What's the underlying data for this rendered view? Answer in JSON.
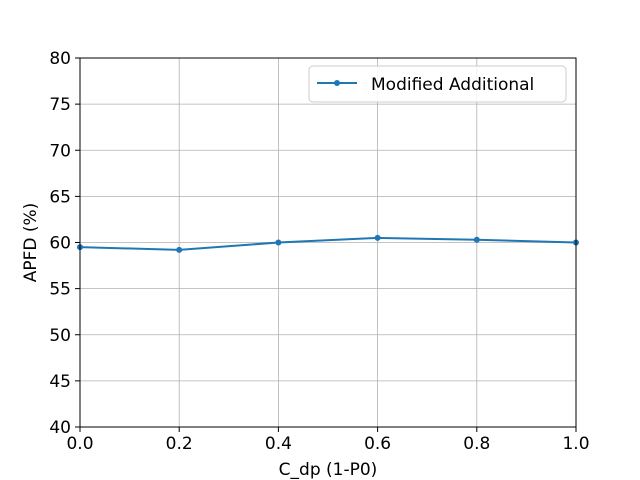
{
  "chart_data": {
    "type": "line",
    "title": "",
    "xlabel": "C_dp (1-P0)",
    "ylabel": "APFD (%)",
    "xlim": [
      0.0,
      1.0
    ],
    "ylim": [
      40,
      80
    ],
    "xticks": [
      "0.0",
      "0.2",
      "0.4",
      "0.6",
      "0.8",
      "1.0"
    ],
    "yticks": [
      "40",
      "45",
      "50",
      "55",
      "60",
      "65",
      "70",
      "75",
      "80"
    ],
    "grid": true,
    "legend_position": "top-right",
    "series": [
      {
        "name": "Modified Additional",
        "color": "#1f77b4",
        "marker": "dot",
        "x": [
          0.0,
          0.2,
          0.4,
          0.6,
          0.8,
          1.0
        ],
        "y": [
          59.5,
          59.2,
          60.0,
          60.5,
          60.3,
          60.0
        ]
      }
    ]
  }
}
